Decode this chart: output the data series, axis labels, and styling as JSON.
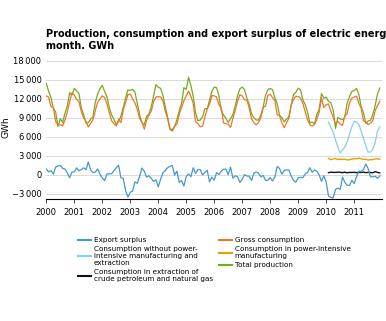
{
  "title": "Production, consumption and export surplus of electric energy per\nmonth. GWh",
  "ylabel": "GWh",
  "yticks": [
    -3000,
    0,
    3000,
    6000,
    9000,
    12000,
    15000,
    18000
  ],
  "ylim": [
    -3800,
    19000
  ],
  "xlim": [
    2000.0,
    2012.0
  ],
  "xtick_years": [
    2000,
    2001,
    2002,
    2003,
    2004,
    2005,
    2006,
    2007,
    2008,
    2009,
    2010,
    2011
  ],
  "colors": {
    "export_surplus": "#4499cc",
    "crude_petroleum": "#111111",
    "power_intensive": "#e8a000",
    "without_power": "#88ccee",
    "gross_consumption": "#ee7722",
    "total_production": "#77aa22"
  },
  "legend": {
    "export_surplus": "Export surplus",
    "crude_petroleum": "Consumption in extraction of\ncrude petroleum and natural gas",
    "power_intensive": "Consumption in power-intensive\nmanufacturing",
    "without_power": "Consumption without power-\nintensive manufacturing and\nextraction",
    "gross_consumption": "Gross consumption",
    "total_production": "Total production"
  }
}
